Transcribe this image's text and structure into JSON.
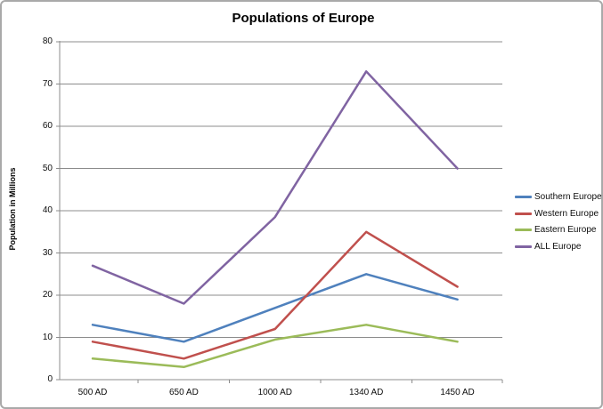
{
  "chart_data": {
    "type": "line",
    "title": "Populations of Europe",
    "xlabel": "",
    "ylabel": "Population in Millions",
    "categories": [
      "500 AD",
      "650 AD",
      "1000 AD",
      "1340 AD",
      "1450 AD"
    ],
    "series": [
      {
        "name": "Southern Europe",
        "color": "#4F81BD",
        "values": [
          13,
          9,
          17,
          25,
          19
        ]
      },
      {
        "name": "Western Europe",
        "color": "#C0504D",
        "values": [
          9,
          5,
          12,
          35,
          22
        ]
      },
      {
        "name": "Eastern Europe",
        "color": "#9BBB59",
        "values": [
          5,
          3,
          9.5,
          13,
          9
        ]
      },
      {
        "name": "ALL Europe",
        "color": "#8064A2",
        "values": [
          27,
          18,
          38.5,
          73,
          50
        ]
      }
    ],
    "ylim": [
      0,
      80
    ],
    "y_tick_step": 10,
    "y_tick_labels": [
      "0",
      "10",
      "20",
      "30",
      "40",
      "50",
      "60",
      "70",
      "80"
    ],
    "grid": true,
    "legend_position": "right",
    "axis_color": "#8C8C8C",
    "gridline_color": "#8C8C8C",
    "frame_border_color": "#A9A9A9",
    "background_color": "#FFFFFF"
  }
}
